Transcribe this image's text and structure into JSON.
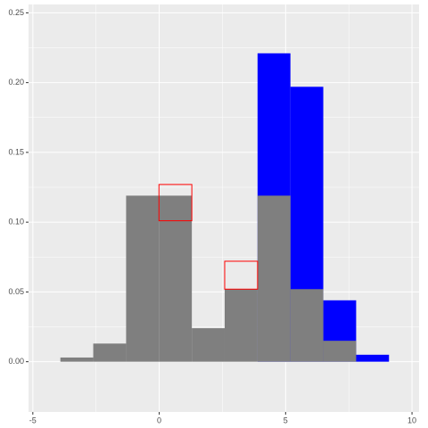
{
  "chart_data": {
    "type": "histogram",
    "bins": [
      -3.91,
      -2.61,
      -1.31,
      -0.01,
      1.29,
      2.59,
      3.89,
      5.19,
      6.49,
      7.79,
      9.09
    ],
    "series": [
      {
        "color": "#0000ff",
        "values": [
          0,
          0,
          0,
          0,
          0,
          0,
          0.221,
          0.197,
          0.044,
          0.005
        ]
      },
      {
        "color": "#7f7f7f",
        "values": [
          0.003,
          0.013,
          0.119,
          0.119,
          0.024,
          0.052,
          0.119,
          0.052,
          0.015,
          0
        ]
      }
    ],
    "boxes": {
      "color": "#ff0000",
      "low": [
        null,
        null,
        null,
        0.101,
        null,
        0.052,
        null,
        null,
        null,
        null
      ],
      "high": [
        null,
        null,
        null,
        0.127,
        null,
        0.072,
        null,
        null,
        null,
        null
      ]
    },
    "xlim": [
      -5.17,
      10.28
    ],
    "ylim": [
      -0.036,
      0.256
    ],
    "xticks": [
      -5,
      0,
      5,
      10
    ],
    "yticks": [
      {
        "value": 0,
        "label": "0.00"
      },
      {
        "value": 0.05,
        "label": "0.05"
      },
      {
        "value": 0.1,
        "label": "0.10"
      },
      {
        "value": 0.15,
        "label": "0.15"
      },
      {
        "value": 0.2,
        "label": "0.20"
      },
      {
        "value": 0.25,
        "label": "0.25"
      }
    ],
    "grid": true
  }
}
